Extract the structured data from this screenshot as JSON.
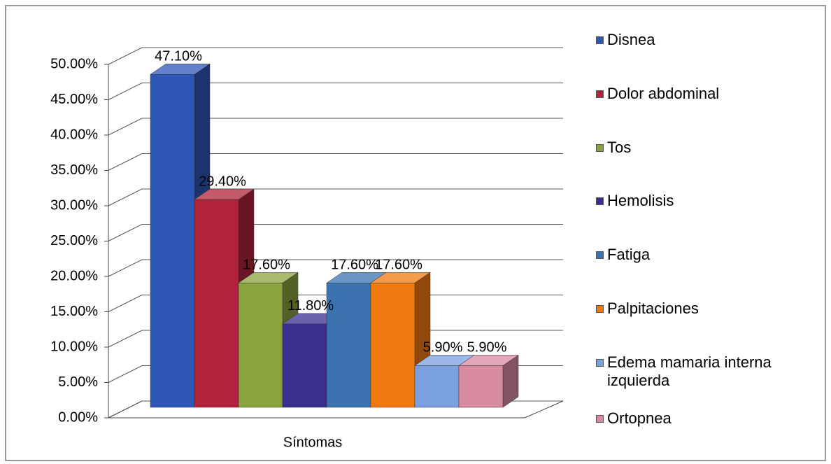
{
  "chart_data": {
    "type": "bar3d",
    "categories": [
      "Síntomas"
    ],
    "series": [
      {
        "name": "Disnea",
        "color": "#2f57b8",
        "values": [
          47.1
        ],
        "value_labels": [
          "47.10%"
        ]
      },
      {
        "name": "Dolor abdominal",
        "color": "#b0233a",
        "values": [
          29.4
        ],
        "value_labels": [
          "29.40%"
        ]
      },
      {
        "name": "Tos",
        "color": "#8ba33c",
        "values": [
          17.6
        ],
        "value_labels": [
          "17.60%"
        ]
      },
      {
        "name": "Hemolisis",
        "color": "#3a2f8f",
        "values": [
          11.8
        ],
        "value_labels": [
          "11.80%"
        ]
      },
      {
        "name": "Fatiga",
        "color": "#3b73b0",
        "values": [
          17.6
        ],
        "value_labels": [
          "17.60%"
        ]
      },
      {
        "name": "Palpitaciones",
        "color": "#f07a10",
        "values": [
          17.6
        ],
        "value_labels": [
          "17.60%"
        ]
      },
      {
        "name": "Edema mamaria interna izquierda",
        "color": "#7aa0e0",
        "values": [
          5.9
        ],
        "value_labels": [
          "5.90%"
        ]
      },
      {
        "name": "Ortopnea",
        "color": "#d88aa0",
        "values": [
          5.9
        ],
        "value_labels": [
          "5.90%"
        ]
      }
    ],
    "ylim": [
      0,
      50
    ],
    "yticks": [
      {
        "value": 0,
        "label": "0.00%"
      },
      {
        "value": 5,
        "label": "5.00%"
      },
      {
        "value": 10,
        "label": "10.00%"
      },
      {
        "value": 15,
        "label": "15.00%"
      },
      {
        "value": 20,
        "label": "20.00%"
      },
      {
        "value": 25,
        "label": "25.00%"
      },
      {
        "value": 30,
        "label": "30.00%"
      },
      {
        "value": 35,
        "label": "35.00%"
      },
      {
        "value": 40,
        "label": "40.00%"
      },
      {
        "value": 45,
        "label": "45.00%"
      },
      {
        "value": 50,
        "label": "50.00%"
      }
    ],
    "grid": true,
    "legend": "right"
  }
}
